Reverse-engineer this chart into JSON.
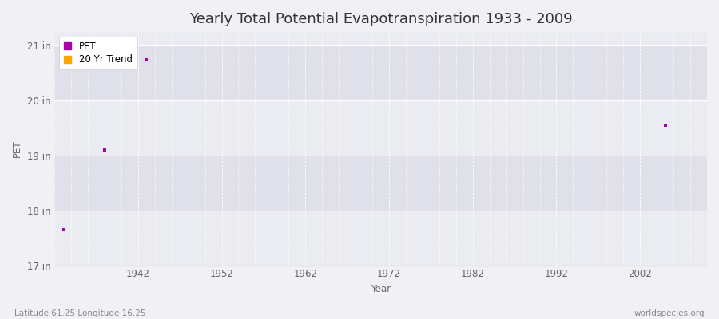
{
  "title": "Yearly Total Potential Evapotranspiration 1933 - 2009",
  "xlabel": "Year",
  "ylabel": "PET",
  "xlim": [
    1932,
    2010
  ],
  "ylim": [
    17,
    21.25
  ],
  "yticks": [
    17,
    18,
    19,
    20,
    21
  ],
  "ytick_labels": [
    "17 in",
    "18 in",
    "19 in",
    "20 in",
    "21 in"
  ],
  "xticks": [
    1942,
    1952,
    1962,
    1972,
    1982,
    1992,
    2002
  ],
  "outer_bg": "#f0f0f5",
  "band_light": "#ebebf2",
  "band_dark": "#e0e0ea",
  "grid_color": "#ffffff",
  "pet_color": "#aa00aa",
  "trend_color": "#ffa500",
  "pet_points": [
    [
      1933,
      17.65
    ],
    [
      1938,
      19.1
    ],
    [
      1943,
      20.75
    ],
    [
      2005,
      19.55
    ]
  ],
  "subtitle_left": "Latitude 61.25 Longitude 16.25",
  "subtitle_right": "worldspecies.org",
  "title_fontsize": 13,
  "label_fontsize": 8.5,
  "tick_fontsize": 8.5
}
